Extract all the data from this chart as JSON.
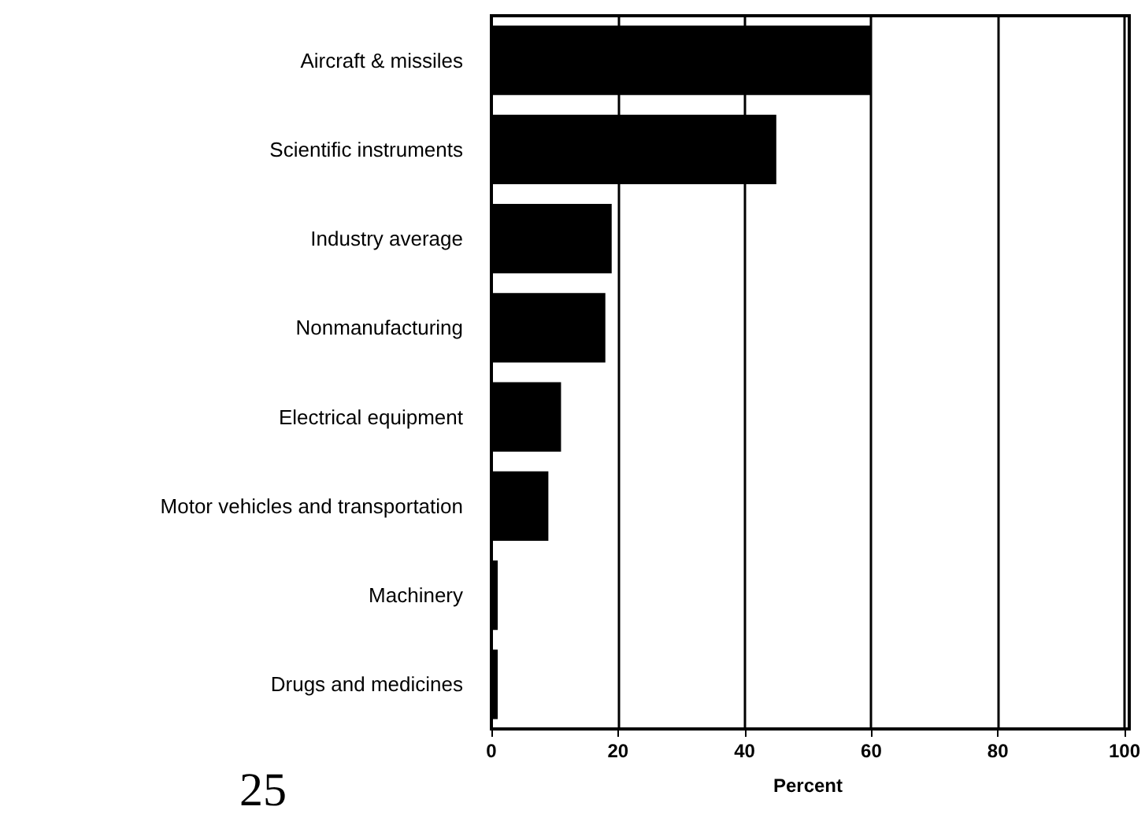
{
  "chart_data": {
    "type": "bar",
    "orientation": "horizontal",
    "xlabel": "Percent",
    "categories": [
      "Aircraft & missiles",
      "Scientific instruments",
      "Industry average",
      "Nonmanufacturing",
      "Electrical equipment",
      "Motor vehicles and transportation",
      "Machinery",
      "Drugs and medicines"
    ],
    "values": [
      60,
      45,
      19,
      18,
      11,
      9,
      1,
      1
    ],
    "color": "#000000",
    "xlim": [
      0,
      100
    ],
    "xticks": [
      0,
      20,
      40,
      60,
      80,
      100
    ],
    "grid": "x",
    "annotations": [
      "25"
    ]
  }
}
